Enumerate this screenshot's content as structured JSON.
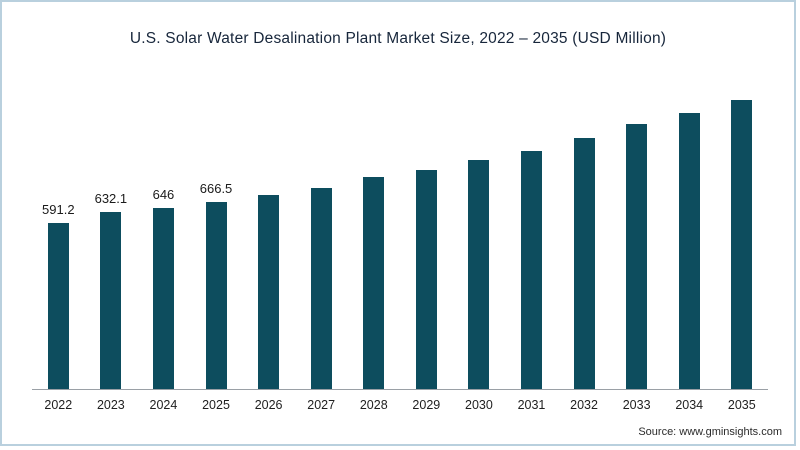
{
  "title": "U.S. Solar Water Desalination Plant Market Size, 2022 – 2035 (USD Million)",
  "source": "Source: www.gminsights.com",
  "colors": {
    "bar": "#0d4d5e",
    "axis": "#9aa0a6",
    "border": "#b9d0de"
  },
  "chart_data": {
    "type": "bar",
    "title": "U.S. Solar Water Desalination Plant Market Size, 2022 – 2035 (USD Million)",
    "categories": [
      "2022",
      "2023",
      "2024",
      "2025",
      "2026",
      "2027",
      "2028",
      "2029",
      "2030",
      "2031",
      "2032",
      "2033",
      "2034",
      "2035"
    ],
    "values": [
      591.2,
      632.1,
      646,
      666.5,
      690,
      715,
      755,
      780,
      815,
      850,
      895,
      945,
      985,
      1030
    ],
    "data_labels": [
      "591.2",
      "632.1",
      "646",
      "666.5",
      "",
      "",
      "",
      "",
      "",
      "",
      "",
      "",
      "",
      ""
    ],
    "xlabel": "",
    "ylabel": "",
    "ylim": [
      0,
      1030
    ],
    "grid": false,
    "legend": false,
    "bar_color": "#0d4d5e",
    "notes": "Values for 2026-2035 estimated from bar heights; only 2022-2025 carry visible data labels"
  }
}
